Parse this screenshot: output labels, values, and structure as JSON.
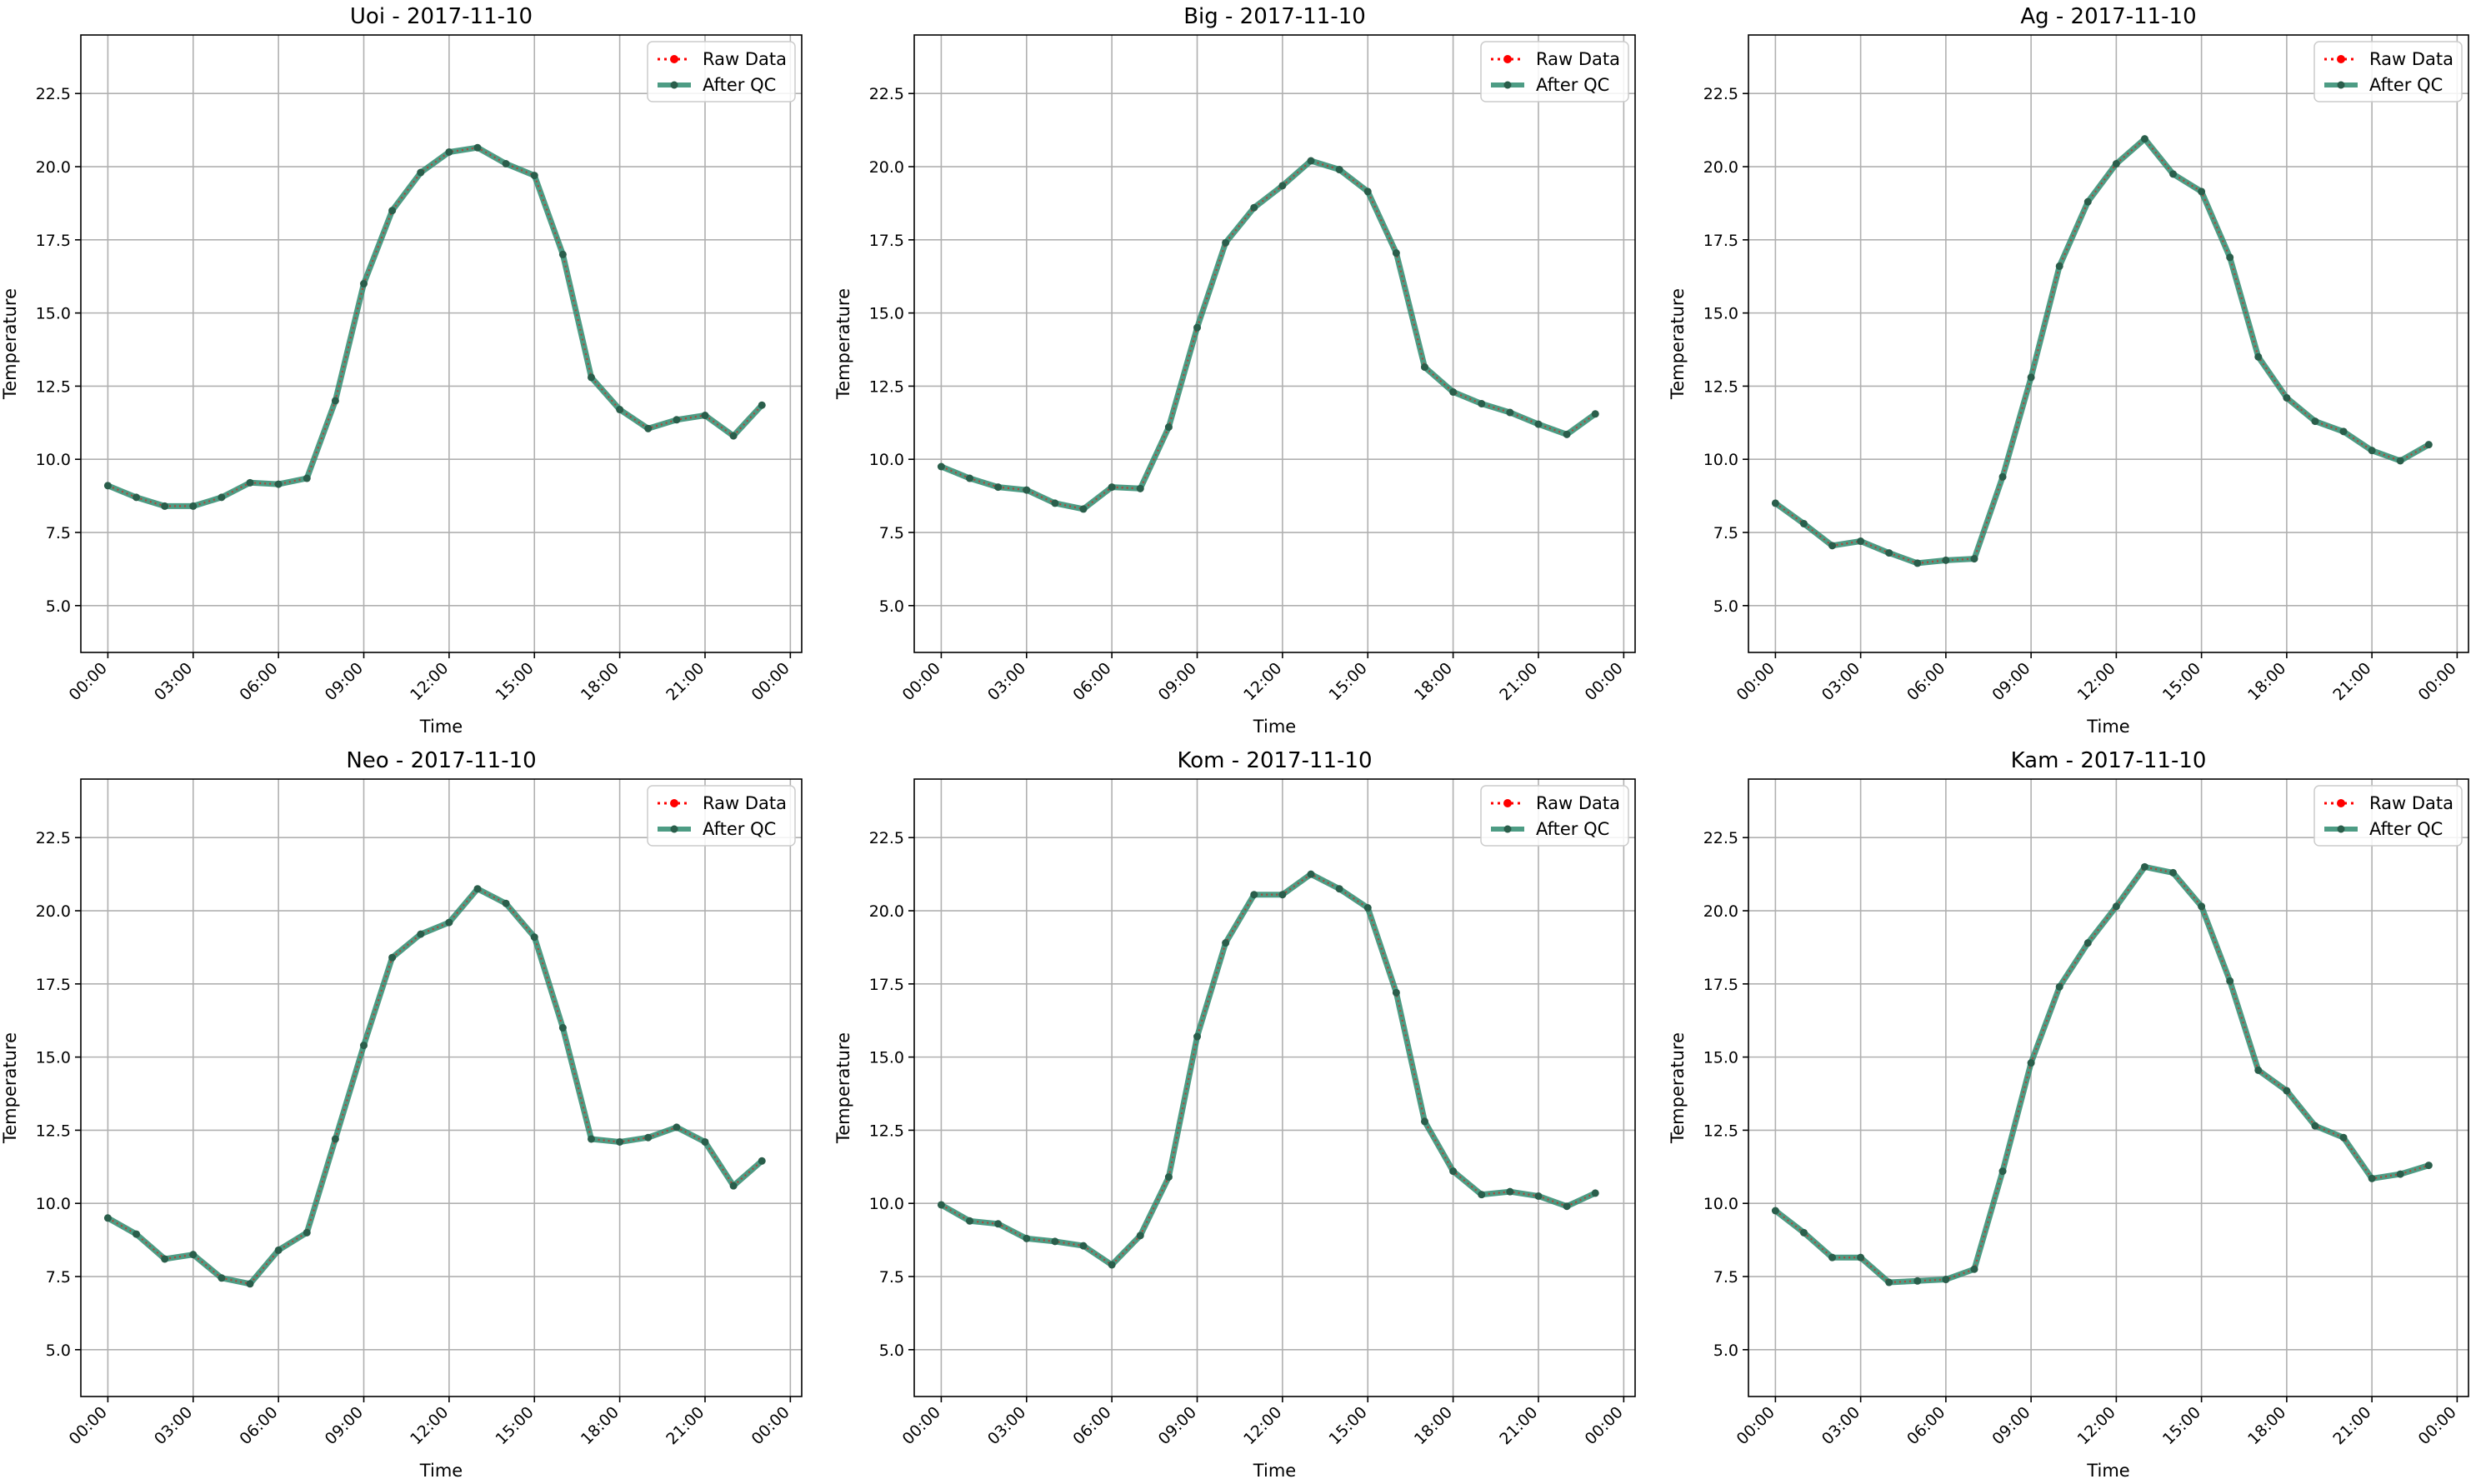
{
  "figure": {
    "suptitle": ""
  },
  "legend": {
    "raw_label": "Raw Data",
    "qc_label": "After QC",
    "raw_color": "#ff0000",
    "qc_color": "#2e8b6f",
    "placement": "upper right"
  },
  "chart_data": [
    {
      "type": "line",
      "title": "Uoi - 2017-11-10",
      "xlabel": "Time",
      "ylabel": "Temperature",
      "ylim": [
        3.4,
        24.5
      ],
      "yticks": [
        "5.0",
        "7.5",
        "10.0",
        "12.5",
        "15.0",
        "17.5",
        "20.0",
        "22.5"
      ],
      "xticks": [
        "00:00",
        "03:00",
        "06:00",
        "09:00",
        "12:00",
        "15:00",
        "18:00",
        "21:00",
        "00:00"
      ],
      "x_hours": [
        0,
        1,
        2,
        3,
        4,
        5,
        6,
        7,
        8,
        9,
        10,
        11,
        12,
        13,
        14,
        15,
        16,
        17,
        18,
        19,
        20,
        21,
        22,
        23
      ],
      "grid": true,
      "series": [
        {
          "name": "Raw Data",
          "values": [
            9.1,
            8.7,
            8.4,
            8.4,
            8.7,
            9.2,
            9.15,
            9.35,
            12.0,
            16.0,
            18.5,
            19.8,
            20.5,
            20.65,
            20.1,
            19.7,
            17.0,
            12.8,
            11.7,
            11.05,
            11.35,
            11.5,
            10.8,
            11.85
          ]
        },
        {
          "name": "After QC",
          "values": [
            9.1,
            8.7,
            8.4,
            8.4,
            8.7,
            9.2,
            9.15,
            9.35,
            12.0,
            16.0,
            18.5,
            19.8,
            20.5,
            20.65,
            20.1,
            19.7,
            17.0,
            12.8,
            11.7,
            11.05,
            11.35,
            11.5,
            10.8,
            11.85
          ]
        }
      ]
    },
    {
      "type": "line",
      "title": "Big - 2017-11-10",
      "xlabel": "Time",
      "ylabel": "Temperature",
      "ylim": [
        3.4,
        24.5
      ],
      "yticks": [
        "5.0",
        "7.5",
        "10.0",
        "12.5",
        "15.0",
        "17.5",
        "20.0",
        "22.5"
      ],
      "xticks": [
        "00:00",
        "03:00",
        "06:00",
        "09:00",
        "12:00",
        "15:00",
        "18:00",
        "21:00",
        "00:00"
      ],
      "x_hours": [
        0,
        1,
        2,
        3,
        4,
        5,
        6,
        7,
        8,
        9,
        10,
        11,
        12,
        13,
        14,
        15,
        16,
        17,
        18,
        19,
        20,
        21,
        22,
        23
      ],
      "grid": true,
      "series": [
        {
          "name": "Raw Data",
          "values": [
            9.75,
            9.35,
            9.05,
            8.95,
            8.5,
            8.3,
            9.05,
            9.0,
            11.1,
            14.5,
            17.4,
            18.6,
            19.35,
            20.2,
            19.9,
            19.15,
            17.05,
            13.15,
            12.3,
            11.9,
            11.6,
            11.2,
            10.85,
            11.55
          ]
        },
        {
          "name": "After QC",
          "values": [
            9.75,
            9.35,
            9.05,
            8.95,
            8.5,
            8.3,
            9.05,
            9.0,
            11.1,
            14.5,
            17.4,
            18.6,
            19.35,
            20.2,
            19.9,
            19.15,
            17.05,
            13.15,
            12.3,
            11.9,
            11.6,
            11.2,
            10.85,
            11.55
          ]
        }
      ]
    },
    {
      "type": "line",
      "title": "Ag - 2017-11-10",
      "xlabel": "Time",
      "ylabel": "Temperature",
      "ylim": [
        3.4,
        24.5
      ],
      "yticks": [
        "5.0",
        "7.5",
        "10.0",
        "12.5",
        "15.0",
        "17.5",
        "20.0",
        "22.5"
      ],
      "xticks": [
        "00:00",
        "03:00",
        "06:00",
        "09:00",
        "12:00",
        "15:00",
        "18:00",
        "21:00",
        "00:00"
      ],
      "x_hours": [
        0,
        1,
        2,
        3,
        4,
        5,
        6,
        7,
        8,
        9,
        10,
        11,
        12,
        13,
        14,
        15,
        16,
        17,
        18,
        19,
        20,
        21,
        22,
        23
      ],
      "grid": true,
      "series": [
        {
          "name": "Raw Data",
          "values": [
            8.5,
            7.8,
            7.05,
            7.2,
            6.8,
            6.45,
            6.55,
            6.6,
            9.4,
            12.8,
            16.6,
            18.8,
            20.1,
            20.95,
            19.75,
            19.15,
            16.9,
            13.5,
            12.1,
            11.3,
            10.95,
            10.3,
            9.95,
            10.5
          ]
        },
        {
          "name": "After QC",
          "values": [
            8.5,
            7.8,
            7.05,
            7.2,
            6.8,
            6.45,
            6.55,
            6.6,
            9.4,
            12.8,
            16.6,
            18.8,
            20.1,
            20.95,
            19.75,
            19.15,
            16.9,
            13.5,
            12.1,
            11.3,
            10.95,
            10.3,
            9.95,
            10.5
          ]
        }
      ]
    },
    {
      "type": "line",
      "title": "Neo - 2017-11-10",
      "xlabel": "Time",
      "ylabel": "Temperature",
      "ylim": [
        3.4,
        24.5
      ],
      "yticks": [
        "5.0",
        "7.5",
        "10.0",
        "12.5",
        "15.0",
        "17.5",
        "20.0",
        "22.5"
      ],
      "xticks": [
        "00:00",
        "03:00",
        "06:00",
        "09:00",
        "12:00",
        "15:00",
        "18:00",
        "21:00",
        "00:00"
      ],
      "x_hours": [
        0,
        1,
        2,
        3,
        4,
        5,
        6,
        7,
        8,
        9,
        10,
        11,
        12,
        13,
        14,
        15,
        16,
        17,
        18,
        19,
        20,
        21,
        22,
        23
      ],
      "grid": true,
      "series": [
        {
          "name": "Raw Data",
          "values": [
            9.5,
            8.95,
            8.1,
            8.25,
            7.45,
            7.25,
            8.4,
            9.0,
            12.2,
            15.4,
            18.4,
            19.2,
            19.6,
            20.75,
            20.25,
            19.1,
            16.0,
            12.2,
            12.1,
            12.25,
            12.6,
            12.1,
            10.6,
            11.45
          ]
        },
        {
          "name": "After QC",
          "values": [
            9.5,
            8.95,
            8.1,
            8.25,
            7.45,
            7.25,
            8.4,
            9.0,
            12.2,
            15.4,
            18.4,
            19.2,
            19.6,
            20.75,
            20.25,
            19.1,
            16.0,
            12.2,
            12.1,
            12.25,
            12.6,
            12.1,
            10.6,
            11.45
          ]
        }
      ]
    },
    {
      "type": "line",
      "title": "Kom - 2017-11-10",
      "xlabel": "Time",
      "ylabel": "Temperature",
      "ylim": [
        3.4,
        24.5
      ],
      "yticks": [
        "5.0",
        "7.5",
        "10.0",
        "12.5",
        "15.0",
        "17.5",
        "20.0",
        "22.5"
      ],
      "xticks": [
        "00:00",
        "03:00",
        "06:00",
        "09:00",
        "12:00",
        "15:00",
        "18:00",
        "21:00",
        "00:00"
      ],
      "x_hours": [
        0,
        1,
        2,
        3,
        4,
        5,
        6,
        7,
        8,
        9,
        10,
        11,
        12,
        13,
        14,
        15,
        16,
        17,
        18,
        19,
        20,
        21,
        22,
        23
      ],
      "grid": true,
      "series": [
        {
          "name": "Raw Data",
          "values": [
            9.95,
            9.4,
            9.3,
            8.8,
            8.7,
            8.55,
            7.9,
            8.9,
            10.9,
            15.7,
            18.9,
            20.55,
            20.55,
            21.25,
            20.75,
            20.1,
            17.2,
            12.8,
            11.1,
            10.3,
            10.4,
            10.25,
            9.9,
            10.35
          ]
        },
        {
          "name": "After QC",
          "values": [
            9.95,
            9.4,
            9.3,
            8.8,
            8.7,
            8.55,
            7.9,
            8.9,
            10.9,
            15.7,
            18.9,
            20.55,
            20.55,
            21.25,
            20.75,
            20.1,
            17.2,
            12.8,
            11.1,
            10.3,
            10.4,
            10.25,
            9.9,
            10.35
          ]
        }
      ]
    },
    {
      "type": "line",
      "title": "Kam - 2017-11-10",
      "xlabel": "Time",
      "ylabel": "Temperature",
      "ylim": [
        3.4,
        24.5
      ],
      "yticks": [
        "5.0",
        "7.5",
        "10.0",
        "12.5",
        "15.0",
        "17.5",
        "20.0",
        "22.5"
      ],
      "xticks": [
        "00:00",
        "03:00",
        "06:00",
        "09:00",
        "12:00",
        "15:00",
        "18:00",
        "21:00",
        "00:00"
      ],
      "x_hours": [
        0,
        1,
        2,
        3,
        4,
        5,
        6,
        7,
        8,
        9,
        10,
        11,
        12,
        13,
        14,
        15,
        16,
        17,
        18,
        19,
        20,
        21,
        22,
        23
      ],
      "grid": true,
      "series": [
        {
          "name": "Raw Data",
          "values": [
            9.75,
            9.0,
            8.15,
            8.15,
            7.3,
            7.35,
            7.4,
            7.75,
            11.1,
            14.8,
            17.4,
            18.9,
            20.15,
            21.5,
            21.3,
            20.15,
            17.6,
            14.55,
            13.85,
            12.65,
            12.25,
            10.85,
            11.0,
            11.3
          ]
        },
        {
          "name": "After QC",
          "values": [
            9.75,
            9.0,
            8.15,
            8.15,
            7.3,
            7.35,
            7.4,
            7.75,
            11.1,
            14.8,
            17.4,
            18.9,
            20.15,
            21.5,
            21.3,
            20.15,
            17.6,
            14.55,
            13.85,
            12.65,
            12.25,
            10.85,
            11.0,
            11.3
          ]
        }
      ]
    }
  ]
}
